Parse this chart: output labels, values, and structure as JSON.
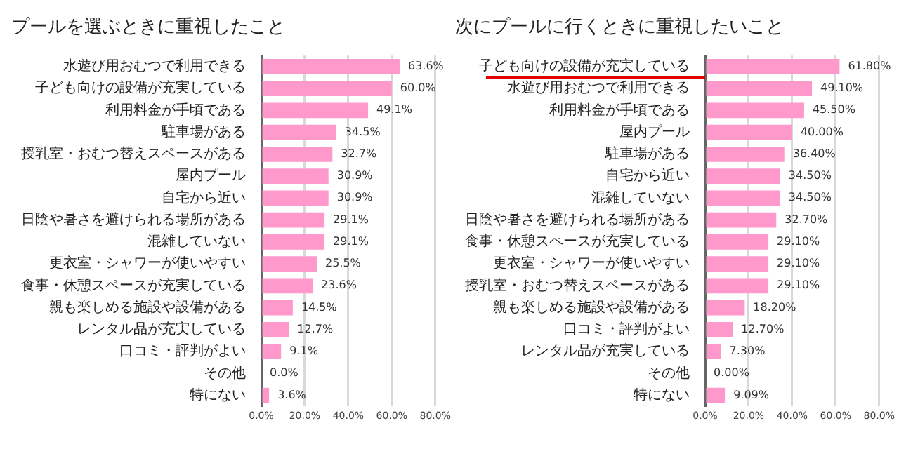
{
  "chart_data": [
    {
      "type": "bar",
      "orientation": "horizontal",
      "title": "プールを選ぶときに重視したこと",
      "categories": [
        "水遊び用おむつで利用できる",
        "子ども向けの設備が充実している",
        "利用料金が手頃である",
        "駐車場がある",
        "授乳室・おむつ替えスペースがある",
        "屋内プール",
        "自宅から近い",
        "日陰や暑さを避けられる場所がある",
        "混雑していない",
        "更衣室・シャワーが使いやすい",
        "食事・休憩スペースが充実している",
        "親も楽しめる施設や設備がある",
        "レンタル品が充実している",
        "口コミ・評判がよい",
        "その他",
        "特にない"
      ],
      "values": [
        63.6,
        60.0,
        49.1,
        34.5,
        32.7,
        30.9,
        30.9,
        29.1,
        29.1,
        25.5,
        23.6,
        14.5,
        12.7,
        9.1,
        0.0,
        3.6
      ],
      "value_labels": [
        "63.6%",
        "60.0%",
        "49.1%",
        "34.5%",
        "32.7%",
        "30.9%",
        "30.9%",
        "29.1%",
        "29.1%",
        "25.5%",
        "23.6%",
        "14.5%",
        "12.7%",
        "9.1%",
        "0.0%",
        "3.6%"
      ],
      "color": "#ff99cc",
      "xlim": [
        0,
        80
      ],
      "xticks": [
        {
          "value": 0,
          "label": "0.0%"
        },
        {
          "value": 20,
          "label": "20.0%"
        },
        {
          "value": 40,
          "label": "40.0%"
        },
        {
          "value": 60,
          "label": "60.0%"
        },
        {
          "value": 80,
          "label": "80.0%"
        }
      ],
      "grid": "x",
      "legend": false
    },
    {
      "type": "bar",
      "orientation": "horizontal",
      "title": "次にプールに行くときに重視したいこと",
      "categories": [
        "子ども向けの設備が充実している",
        "水遊び用おむつで利用できる",
        "利用料金が手頃である",
        "屋内プール",
        "駐車場がある",
        "自宅から近い",
        "混雑していない",
        "日陰や暑さを避けられる場所がある",
        "食事・休憩スペースが充実している",
        "更衣室・シャワーが使いやすい",
        "授乳室・おむつ替えスペースがある",
        "親も楽しめる施設や設備がある",
        "口コミ・評判がよい",
        "レンタル品が充実している",
        "その他",
        "特にない"
      ],
      "values": [
        61.8,
        49.1,
        45.5,
        40.0,
        36.4,
        34.5,
        34.5,
        32.7,
        29.1,
        29.1,
        29.1,
        18.2,
        12.7,
        7.3,
        0.0,
        9.09
      ],
      "value_labels": [
        "61.80%",
        "49.10%",
        "45.50%",
        "40.00%",
        "36.40%",
        "34.50%",
        "34.50%",
        "32.70%",
        "29.10%",
        "29.10%",
        "29.10%",
        "18.20%",
        "12.70%",
        "7.30%",
        "0.00%",
        "9.09%"
      ],
      "color": "#ff99cc",
      "xlim": [
        0,
        80
      ],
      "xticks": [
        {
          "value": 0,
          "label": "0.0%"
        },
        {
          "value": 20,
          "label": "20.0%"
        },
        {
          "value": 40,
          "label": "40.0%"
        },
        {
          "value": 60,
          "label": "60.0%"
        },
        {
          "value": 80,
          "label": "80.0%"
        }
      ],
      "grid": "x",
      "legend": false
    }
  ]
}
